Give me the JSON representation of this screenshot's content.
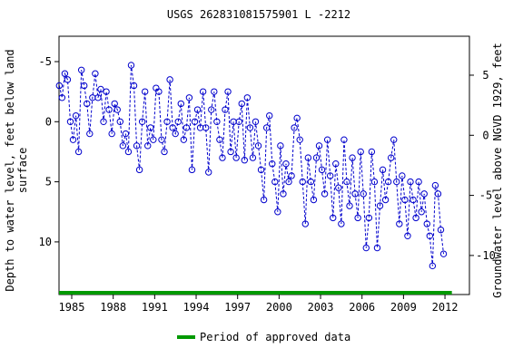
{
  "chart_data": {
    "type": "line",
    "title": "USGS 262831081575901 L  -2212",
    "y_label": [
      "Depth to water level, feet below land",
      "surface"
    ],
    "y2_label": "Groundwater level above NGVD 1929, feet",
    "inverted": true,
    "xlim": [
      1984.08,
      2013.77
    ],
    "xticks": [
      1985,
      1988,
      1991,
      1994,
      1997,
      2000,
      2003,
      2006,
      2009,
      2012
    ],
    "ylim": [
      -7.11,
      14.38
    ],
    "yticks": [
      -5,
      0,
      5,
      10
    ],
    "y2lim": [
      8.24,
      -13.25
    ],
    "y2ticks": [
      5,
      0,
      -5,
      -10
    ],
    "x": [
      1984.1,
      1984.3,
      1984.5,
      1984.7,
      1984.9,
      1985.1,
      1985.3,
      1985.5,
      1985.7,
      1985.9,
      1986.1,
      1986.3,
      1986.5,
      1986.7,
      1986.9,
      1987.1,
      1987.3,
      1987.5,
      1987.7,
      1987.9,
      1988.1,
      1988.3,
      1988.5,
      1988.7,
      1988.9,
      1989.1,
      1989.3,
      1989.5,
      1989.7,
      1989.9,
      1990.1,
      1990.3,
      1990.5,
      1990.7,
      1990.9,
      1991.1,
      1991.3,
      1991.5,
      1991.7,
      1991.9,
      1992.1,
      1992.3,
      1992.5,
      1992.7,
      1992.9,
      1993.1,
      1993.3,
      1993.5,
      1993.7,
      1993.9,
      1994.1,
      1994.3,
      1994.5,
      1994.7,
      1994.9,
      1995.1,
      1995.3,
      1995.5,
      1995.7,
      1995.9,
      1996.1,
      1996.3,
      1996.5,
      1996.7,
      1996.9,
      1997.1,
      1997.3,
      1997.5,
      1997.7,
      1997.9,
      1998.1,
      1998.3,
      1998.5,
      1998.7,
      1998.9,
      1999.1,
      1999.3,
      1999.5,
      1999.7,
      1999.9,
      2000.1,
      2000.3,
      2000.5,
      2000.7,
      2000.9,
      2001.1,
      2001.3,
      2001.5,
      2001.7,
      2001.9,
      2002.1,
      2002.3,
      2002.5,
      2002.7,
      2002.9,
      2003.1,
      2003.3,
      2003.5,
      2003.7,
      2003.9,
      2004.1,
      2004.3,
      2004.5,
      2004.7,
      2004.9,
      2005.1,
      2005.3,
      2005.5,
      2005.7,
      2005.9,
      2006.1,
      2006.3,
      2006.5,
      2006.7,
      2006.9,
      2007.1,
      2007.3,
      2007.5,
      2007.7,
      2007.9,
      2008.1,
      2008.3,
      2008.5,
      2008.7,
      2008.9,
      2009.1,
      2009.3,
      2009.5,
      2009.7,
      2009.9,
      2010.1,
      2010.3,
      2010.5,
      2010.7,
      2010.9,
      2011.1,
      2011.3,
      2011.5,
      2011.7,
      2011.9
    ],
    "series": [
      {
        "color": "#0000cc",
        "values": [
          -3,
          -2,
          -4,
          -3.5,
          0,
          1.5,
          -0.5,
          2.5,
          -4.3,
          -3,
          -1.5,
          1,
          -2,
          -4,
          -2,
          -2.7,
          0,
          -2.5,
          -1,
          1,
          -1.5,
          -1,
          0,
          2,
          1,
          2.5,
          -4.7,
          -3,
          2,
          4,
          0,
          -2.5,
          2,
          0.5,
          1.5,
          -2.8,
          -2.5,
          1.5,
          2.5,
          0,
          -3.5,
          0.5,
          1,
          0,
          -1.5,
          1.5,
          0.5,
          -2,
          4,
          0,
          -1,
          0.5,
          -2.5,
          0.5,
          4.2,
          -1,
          -2.5,
          0,
          1.5,
          3,
          -1,
          -2.5,
          2.5,
          0,
          3,
          0,
          -1.5,
          3.2,
          -2,
          0.5,
          3,
          0,
          2,
          4,
          6.5,
          0.5,
          -0.5,
          3.5,
          5,
          7.5,
          2,
          6,
          3.5,
          5,
          4.5,
          0.5,
          -0.3,
          1.5,
          5,
          8.5,
          3,
          5,
          6.5,
          3,
          2,
          4,
          6,
          1.5,
          4.5,
          8,
          3.5,
          5.5,
          8.5,
          1.5,
          5,
          7,
          3,
          6,
          8,
          2.5,
          6,
          10.5,
          8,
          2.5,
          5,
          10.5,
          7,
          4,
          6.5,
          5,
          3,
          1.5,
          5,
          8.5,
          4.5,
          6.5,
          9.5,
          5,
          6.5,
          8,
          5,
          7.5,
          6,
          8.5,
          9.5,
          12,
          5.3,
          6,
          9,
          11
        ]
      }
    ],
    "approved_period": [
      1984.08,
      2012.5
    ],
    "approved_color": "#009900",
    "legend_label": "Period of approved data"
  }
}
